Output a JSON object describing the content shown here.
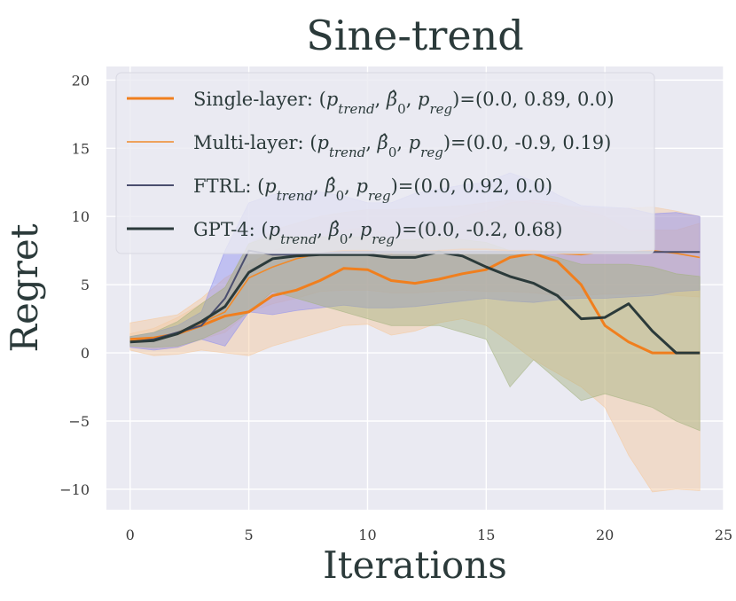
{
  "chart_data": {
    "type": "line",
    "title": "Sine-trend",
    "xlabel": "Iterations",
    "ylabel": "Regret",
    "xlim": [
      -1,
      25
    ],
    "ylim": [
      -11.5,
      21
    ],
    "xticks": [
      0,
      5,
      10,
      15,
      20,
      25
    ],
    "yticks": [
      -10,
      -5,
      0,
      5,
      10,
      15,
      20
    ],
    "x_tick_labels": [
      "0",
      "5",
      "10",
      "15",
      "20",
      "25"
    ],
    "y_tick_labels": [
      "−10",
      "−5",
      "0",
      "5",
      "10",
      "15",
      "20"
    ],
    "grid": true,
    "legend_position": "top-left",
    "x": [
      0,
      1,
      2,
      3,
      4,
      5,
      6,
      7,
      8,
      9,
      10,
      11,
      12,
      13,
      14,
      15,
      16,
      17,
      18,
      19,
      20,
      21,
      22,
      23,
      24
    ],
    "series": [
      {
        "name": "Single-layer: (p_trend, β̂0, p_reg)=(0.0, 0.89, 0.0)",
        "legend_prefix": "Single-layer: ",
        "legend_suffix": "=(0.0, 0.89, 0.0)",
        "color": "#f07f1e",
        "line_width": 3,
        "band_color": "#f6c89a",
        "values": [
          1.0,
          1.1,
          1.4,
          2.0,
          2.7,
          3.0,
          4.2,
          4.6,
          5.3,
          6.2,
          6.1,
          5.3,
          5.1,
          5.4,
          5.8,
          6.1,
          7.0,
          7.3,
          6.7,
          5.0,
          2.0,
          0.8,
          0.0,
          0.0,
          0.0
        ],
        "lower": [
          0.2,
          -0.2,
          -0.1,
          0.2,
          0.0,
          -0.2,
          0.5,
          1.0,
          1.5,
          2.0,
          2.1,
          1.3,
          1.6,
          2.2,
          2.5,
          2.0,
          0.8,
          -0.5,
          -1.5,
          -2.5,
          -4.0,
          -7.5,
          -10.2,
          -10.0,
          -10.1
        ],
        "upper": [
          2.2,
          2.5,
          2.8,
          4.0,
          5.5,
          6.5,
          7.5,
          8.0,
          8.5,
          9.0,
          9.2,
          8.5,
          9.0,
          9.5,
          10.0,
          10.4,
          11.0,
          11.2,
          11.0,
          10.5,
          10.0,
          9.0,
          9.0,
          9.0,
          9.5
        ]
      },
      {
        "name": "Multi-layer: (p_trend, β̂0, p_reg)=(0.0, -0.9, 0.19)",
        "legend_prefix": "Multi-layer: ",
        "legend_suffix": "=(0.0, -0.9, 0.19)",
        "color": "#f08a2a",
        "line_width": 1.6,
        "band_color": "#f3c9a2",
        "values": [
          0.9,
          1.0,
          1.5,
          2.2,
          3.0,
          5.5,
          6.3,
          6.9,
          7.3,
          7.5,
          7.5,
          7.3,
          7.4,
          7.5,
          7.6,
          7.6,
          7.5,
          7.5,
          7.3,
          7.2,
          7.4,
          7.4,
          7.5,
          7.3,
          7.0
        ],
        "lower": [
          0.5,
          0.3,
          0.4,
          1.0,
          1.5,
          3.0,
          3.6,
          4.0,
          4.5,
          4.6,
          4.6,
          4.4,
          4.4,
          4.5,
          4.6,
          4.5,
          4.5,
          4.4,
          4.2,
          4.2,
          4.3,
          4.3,
          4.4,
          4.2,
          4.1
        ],
        "upper": [
          1.4,
          1.8,
          2.6,
          3.6,
          4.8,
          8.0,
          9.0,
          9.5,
          10.0,
          10.3,
          10.5,
          10.5,
          10.6,
          10.7,
          10.8,
          11.0,
          11.2,
          11.0,
          10.8,
          10.7,
          10.6,
          10.6,
          10.7,
          10.4,
          10.0
        ]
      },
      {
        "name": "FTRL: (p_trend, β̂0, p_reg)=(0.0, 0.92, 0.0)",
        "legend_prefix": "FTRL: ",
        "legend_suffix": "=(0.0, 0.92, 0.0)",
        "color": "#4a4e6e",
        "line_width": 2,
        "band_color": "#8f8ff0",
        "values": [
          0.8,
          1.0,
          1.5,
          2.0,
          4.0,
          7.5,
          7.2,
          7.2,
          7.3,
          7.4,
          7.4,
          7.4,
          7.4,
          7.4,
          7.4,
          7.4,
          7.4,
          7.4,
          7.4,
          7.4,
          7.4,
          7.4,
          7.4,
          7.4,
          7.4
        ],
        "lower": [
          0.4,
          0.2,
          0.4,
          1.0,
          0.5,
          3.0,
          2.8,
          3.1,
          3.3,
          3.5,
          3.3,
          3.3,
          3.4,
          3.6,
          3.8,
          4.0,
          3.8,
          3.7,
          3.9,
          4.0,
          4.0,
          4.1,
          4.2,
          4.5,
          4.6
        ],
        "upper": [
          1.2,
          1.5,
          2.0,
          3.0,
          7.5,
          11.0,
          11.6,
          11.7,
          11.8,
          11.5,
          11.0,
          11.0,
          11.7,
          12.0,
          12.3,
          12.5,
          13.2,
          12.6,
          11.6,
          10.8,
          10.7,
          10.6,
          10.2,
          10.3,
          10.0
        ]
      },
      {
        "name": "GPT-4: (p_trend, β̂0, p_reg)=(0.0, -0.2, 0.68)",
        "legend_prefix": "GPT-4: ",
        "legend_suffix": "=(0.0, -0.2, 0.68)",
        "color": "#2b3a3a",
        "line_width": 3,
        "band_color": "#a3b27e",
        "values": [
          0.8,
          0.9,
          1.4,
          2.3,
          3.4,
          5.9,
          6.9,
          7.1,
          7.2,
          7.2,
          7.2,
          7.0,
          7.0,
          7.4,
          7.1,
          6.3,
          5.6,
          5.1,
          4.2,
          2.5,
          2.6,
          3.6,
          1.6,
          0.0,
          0.0
        ],
        "lower": [
          0.5,
          0.4,
          0.5,
          1.0,
          1.8,
          3.0,
          4.5,
          4.0,
          3.5,
          3.0,
          2.5,
          2.0,
          2.0,
          2.0,
          1.5,
          1.0,
          -2.5,
          -0.5,
          -2.0,
          -3.5,
          -3.0,
          -3.5,
          -4.0,
          -5.0,
          -5.7
        ],
        "upper": [
          1.2,
          1.5,
          2.3,
          3.6,
          4.8,
          8.0,
          8.6,
          8.5,
          8.5,
          8.5,
          8.5,
          8.3,
          8.3,
          8.5,
          8.3,
          8.1,
          7.5,
          7.3,
          7.0,
          6.5,
          6.5,
          6.5,
          6.3,
          5.8,
          5.6
        ]
      }
    ]
  }
}
